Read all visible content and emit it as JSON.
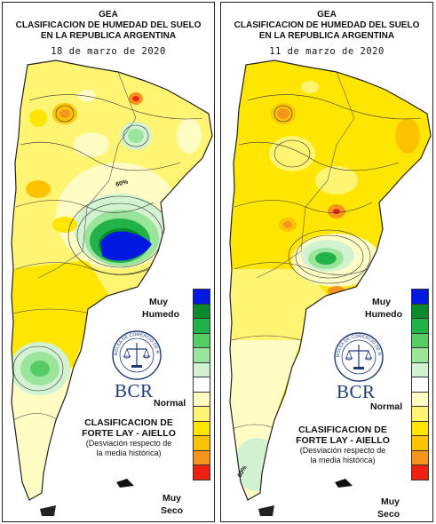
{
  "panels": [
    {
      "org": "GEA",
      "title_line1": "CLASIFICACION DE HUMEDAD DEL SUELO",
      "title_line2": "EN LA REPUBLICA ARGENTINA",
      "date": "18 de marzo de 2020",
      "contour_label": "60%"
    },
    {
      "org": "GEA",
      "title_line1": "CLASIFICACION DE HUMEDAD DEL SUELO",
      "title_line2": "EN LA REPUBLICA ARGENTINA",
      "date": "11 de marzo de 2020",
      "contour_label": "60%"
    }
  ],
  "legend": {
    "top_label_1": "Muy",
    "top_label_2": "Humedo",
    "mid_label": "Normal",
    "bottom_label_1": "Muy",
    "bottom_label_2": "Seco",
    "colors": [
      "#0018e0",
      "#0a8a2a",
      "#22b24a",
      "#55cc66",
      "#9be49b",
      "#d2f2d2",
      "#ffffff",
      "#fffcc4",
      "#fff573",
      "#ffe600",
      "#fcc400",
      "#f7941d",
      "#ee2212"
    ],
    "color_names": [
      "muy-humedo",
      "humedo-5",
      "humedo-4",
      "humedo-3",
      "humedo-2",
      "humedo-1",
      "normal",
      "seco-1",
      "seco-2",
      "seco-3",
      "seco-4",
      "seco-5",
      "muy-seco"
    ]
  },
  "logo": {
    "text": "BCR",
    "seal_text": "BOLSA DE COMERCIO DE ROSARIO"
  },
  "classification": {
    "line1": "CLASIFICACION DE",
    "line2": "FORTE LAY - AIELLO",
    "note1": "(Desviación respecto de",
    "note2": "la media histórica)"
  }
}
